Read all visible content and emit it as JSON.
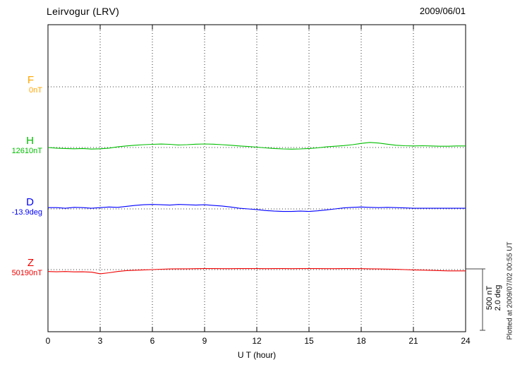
{
  "footer": {
    "plotted_at": "Plotted at 2009/07/02 00:55 UT"
  },
  "chart_data": {
    "type": "line",
    "title": "Leirvogur (LRV)",
    "date": "2009/06/01",
    "xlabel": "U T (hour)",
    "x_range": [
      0,
      24
    ],
    "x_ticks": [
      0,
      3,
      6,
      9,
      12,
      15,
      18,
      21,
      24
    ],
    "x_step_hours": 0.5,
    "grid": "dotted vertical at 3h intervals, dotted horizontal baseline per channel",
    "scale": {
      "label_nt": "500 nT",
      "label_deg": "2.0 deg",
      "nT_per_bar": 500,
      "deg_per_bar": 2.0
    },
    "series": [
      {
        "name": "F",
        "baseline_label": "0nT",
        "baseline_value": 0,
        "unit": "nT",
        "color": "#FFA500",
        "values": []
      },
      {
        "name": "H",
        "baseline_label": "12610nT",
        "baseline_value": 12610,
        "unit": "nT",
        "color": "#00BE00",
        "values": [
          0,
          -5,
          -8,
          -10,
          -8,
          -12,
          -10,
          -5,
          5,
          12,
          18,
          22,
          25,
          27,
          25,
          20,
          22,
          26,
          28,
          26,
          22,
          18,
          12,
          8,
          3,
          -3,
          -8,
          -11,
          -13,
          -11,
          -8,
          -3,
          5,
          10,
          15,
          22,
          32,
          40,
          35,
          26,
          18,
          14,
          12,
          14,
          12,
          10,
          10,
          12,
          12
        ]
      },
      {
        "name": "D",
        "baseline_label": "-13.9deg",
        "baseline_value": -13.9,
        "unit": "deg",
        "color": "#0000FF",
        "values": [
          0.04,
          0.04,
          0.02,
          0.05,
          0.04,
          0.02,
          0.04,
          0.06,
          0.05,
          0.08,
          0.11,
          0.13,
          0.14,
          0.13,
          0.12,
          0.14,
          0.13,
          0.12,
          0.13,
          0.11,
          0.09,
          0.06,
          0.02,
          0.0,
          -0.02,
          -0.05,
          -0.07,
          -0.08,
          -0.08,
          -0.07,
          -0.08,
          -0.06,
          -0.03,
          0.0,
          0.03,
          0.05,
          0.06,
          0.05,
          0.04,
          0.05,
          0.04,
          0.03,
          0.02,
          0.02,
          0.02,
          0.02,
          0.02,
          0.02,
          0.02
        ]
      },
      {
        "name": "Z",
        "baseline_label": "50190nT",
        "baseline_value": 50190,
        "unit": "nT",
        "color": "#F00000",
        "values": [
          -15,
          -17,
          -15,
          -18,
          -17,
          -20,
          -33,
          -25,
          -15,
          -8,
          -5,
          -2,
          0,
          3,
          5,
          6,
          6,
          7,
          8,
          8,
          7,
          7,
          8,
          8,
          8,
          7,
          8,
          8,
          7,
          8,
          8,
          8,
          7,
          7,
          8,
          8,
          7,
          6,
          5,
          4,
          2,
          0,
          -2,
          -4,
          -6,
          -8,
          -10,
          -10,
          -10
        ]
      }
    ]
  }
}
